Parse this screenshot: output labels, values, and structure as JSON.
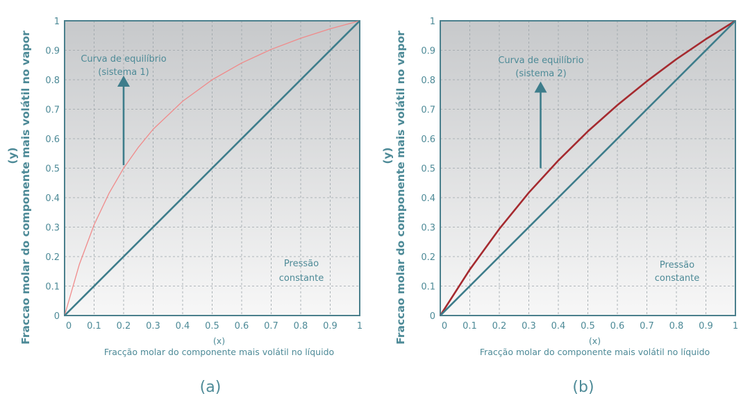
{
  "colors": {
    "axis_text": "#4d8a97",
    "diagonal": "#3e7d8b",
    "frame": "#4a7f8c",
    "curve_a": "#f08a8a",
    "curve_b": "#a52a2f",
    "grid": "#9aa3a8"
  },
  "chart_data": [
    {
      "type": "line",
      "panel_label": "(a)",
      "xlabel_var": "(x)",
      "xlabel": "Fracção molar do componente mais volátil no líquido",
      "ylabel_var": "(y)",
      "ylabel": "Fraccao molar do componente mais volátil no vapor",
      "xlim": [
        0,
        1
      ],
      "ylim": [
        0,
        1
      ],
      "x_ticks": [
        "0",
        "0.1",
        "0.2",
        "0.3",
        "0.4",
        "0.5",
        "0.6",
        "0.7",
        "0.8",
        "0.9",
        "1"
      ],
      "y_ticks": [
        "0",
        "0.1",
        "0.2",
        "0.3",
        "0.4",
        "0.5",
        "0.6",
        "0.7",
        "0.8",
        "0.9",
        "1"
      ],
      "grid": true,
      "annotations": [
        "Curva de equilíbrio",
        "(sistema 1)",
        "Pressão",
        "constante"
      ],
      "arrow": {
        "from": [
          0.2,
          0.51
        ],
        "to": [
          0.2,
          0.8
        ]
      },
      "series": [
        {
          "role": "equilibrium",
          "x": [
            0,
            0.05,
            0.1,
            0.15,
            0.2,
            0.25,
            0.3,
            0.4,
            0.5,
            0.6,
            0.7,
            0.8,
            0.9,
            1.0
          ],
          "y": [
            0,
            0.174,
            0.308,
            0.414,
            0.5,
            0.571,
            0.632,
            0.727,
            0.8,
            0.857,
            0.903,
            0.941,
            0.973,
            1.0
          ]
        },
        {
          "role": "diagonal",
          "x": [
            0,
            1
          ],
          "y": [
            0,
            1
          ]
        }
      ]
    },
    {
      "type": "line",
      "panel_label": "(b)",
      "xlabel_var": "(x)",
      "xlabel": "Fracção molar do componente mais volátil no líquido",
      "ylabel_var": "(y)",
      "ylabel": "Fraccao molar do componente mais volátil no vapor",
      "xlim": [
        0,
        1
      ],
      "ylim": [
        0,
        1
      ],
      "x_ticks": [
        "0",
        "0.1",
        "0.2",
        "0.3",
        "0.4",
        "0.5",
        "0.6",
        "0.7",
        "0.8",
        "0.9",
        "1"
      ],
      "y_ticks": [
        "0",
        "0.1",
        "0.2",
        "0.3",
        "0.4",
        "0.5",
        "0.6",
        "0.7",
        "0.8",
        "0.9",
        "1"
      ],
      "grid": true,
      "annotations": [
        "Curva de equilíbrio",
        "(sistema 2)",
        "Pressão",
        "constante"
      ],
      "arrow": {
        "from": [
          0.34,
          0.5
        ],
        "to": [
          0.34,
          0.78
        ]
      },
      "series": [
        {
          "role": "equilibrium",
          "x": [
            0,
            0.1,
            0.2,
            0.3,
            0.4,
            0.5,
            0.6,
            0.7,
            0.8,
            0.9,
            1.0
          ],
          "y": [
            0,
            0.156,
            0.294,
            0.417,
            0.526,
            0.625,
            0.714,
            0.795,
            0.87,
            0.938,
            1.0
          ]
        },
        {
          "role": "diagonal",
          "x": [
            0,
            1
          ],
          "y": [
            0,
            1
          ]
        }
      ]
    }
  ]
}
